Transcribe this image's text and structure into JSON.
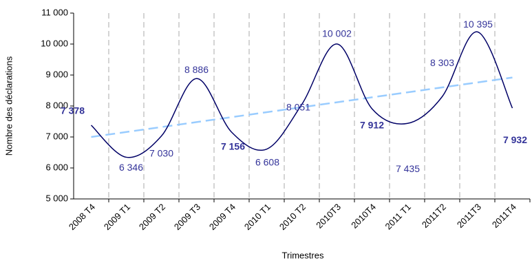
{
  "chart_data": {
    "type": "line",
    "x_label": "Trimestres",
    "y_label": "Nombre  des déclarations",
    "categories": [
      "2008 T4",
      "2009 T1",
      "2009 T2",
      "2009 T3",
      "2009 T4",
      "2010 T1",
      "2010 T2",
      "2010T3",
      "2010T4",
      "2011 T1",
      "2011T2",
      "2011T3",
      "2011T4"
    ],
    "series": [
      {
        "color": "#000066",
        "smooth": true,
        "values": [
          7378,
          6346,
          7030,
          8886,
          7156,
          6608,
          8051,
          10002,
          7912,
          7435,
          8303,
          10395,
          7932
        ],
        "value_labels": [
          "7 378",
          "6 346",
          "7 030",
          "8 886",
          "7 156",
          "6 608",
          "8 051",
          "10 002",
          "7 912",
          "7 435",
          "8 303",
          "10 395",
          "7 932"
        ],
        "label_bold": [
          true,
          false,
          false,
          false,
          true,
          false,
          false,
          false,
          true,
          false,
          false,
          false,
          true
        ]
      },
      {
        "color": "#99ccff",
        "dashed": true,
        "values": [
          7000,
          7160,
          7320,
          7480,
          7640,
          7800,
          7960,
          8120,
          8280,
          8440,
          8600,
          8760,
          8920
        ]
      }
    ],
    "ylim": [
      5000,
      11000
    ],
    "yticks": [
      {
        "value": 5000,
        "label": "5 000"
      },
      {
        "value": 6000,
        "label": "6 000"
      },
      {
        "value": 7000,
        "label": "7 000"
      },
      {
        "value": 8000,
        "label": "8 000"
      },
      {
        "value": 9000,
        "label": "9 000"
      },
      {
        "value": 10000,
        "label": "10 000"
      },
      {
        "value": 11000,
        "label": "11 000"
      }
    ],
    "vertical_grid": true
  }
}
